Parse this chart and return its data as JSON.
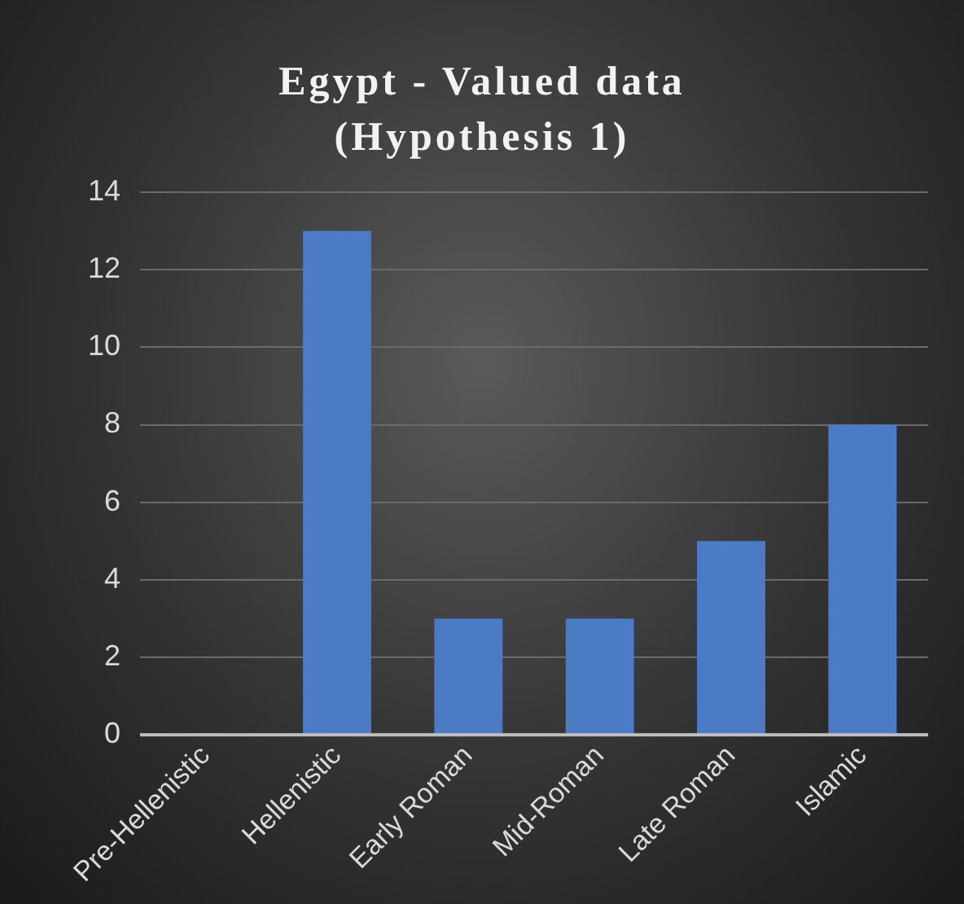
{
  "chart_data": {
    "type": "bar",
    "title": "Egypt - Valued data (Hypothesis 1)",
    "categories": [
      "Pre-Hellenistic",
      "Hellenistic",
      "Early Roman",
      "Mid-Roman",
      "Late Roman",
      "Islamic"
    ],
    "values": [
      0,
      13,
      3,
      3,
      5,
      8
    ],
    "color": "#4a7bc4",
    "ylim": [
      0,
      14
    ],
    "yticks": [
      0,
      2,
      4,
      6,
      8,
      10,
      12,
      14
    ],
    "grid": "y",
    "legend": false
  }
}
